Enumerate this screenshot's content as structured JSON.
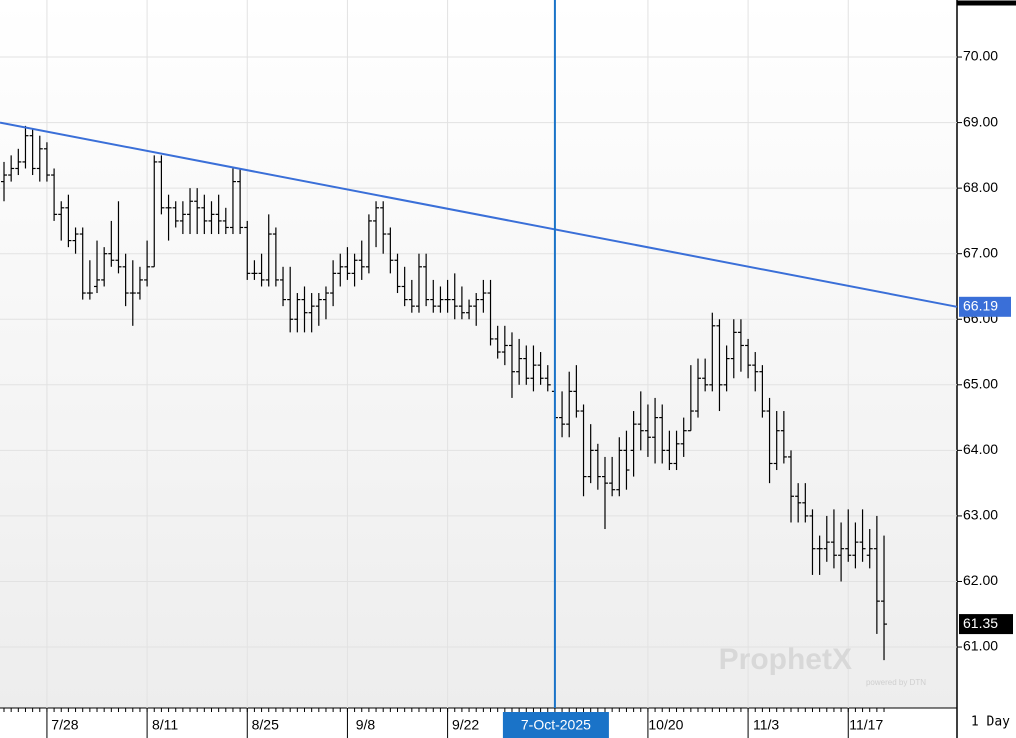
{
  "chart_data": {
    "type": "ohlc",
    "categories": [
      null,
      null,
      null,
      null,
      null,
      null,
      "7/28",
      null,
      null,
      null,
      null,
      null,
      null,
      null,
      null,
      null,
      null,
      null,
      null,
      null,
      "8/11",
      null,
      null,
      null,
      null,
      null,
      null,
      null,
      null,
      null,
      null,
      null,
      null,
      null,
      "8/25",
      null,
      null,
      null,
      null,
      null,
      null,
      null,
      null,
      null,
      null,
      null,
      null,
      null,
      "9/8",
      null,
      null,
      null,
      null,
      null,
      null,
      null,
      null,
      null,
      null,
      null,
      null,
      null,
      "9/22",
      null,
      null,
      null,
      null,
      null,
      null,
      null,
      null,
      null,
      null,
      null,
      null,
      null,
      null,
      null,
      null,
      null,
      null,
      null,
      null,
      null,
      null,
      null,
      null,
      null,
      null,
      null,
      "10/20",
      null,
      null,
      null,
      null,
      null,
      null,
      null,
      null,
      null,
      null,
      null,
      null,
      null,
      "11/3",
      null,
      null,
      null,
      null,
      null,
      null,
      null,
      null,
      null,
      null,
      null,
      null,
      null,
      "11/17",
      null,
      null,
      null,
      null,
      null
    ],
    "open": [
      68.1,
      68.2,
      68.3,
      68.4,
      68.8,
      68.3,
      68.6,
      68.2,
      67.6,
      67.7,
      67.2,
      67.3,
      66.4,
      66.5,
      66.6,
      67.0,
      66.9,
      66.8,
      66.4,
      66.4,
      66.6,
      66.8,
      68.4,
      67.7,
      67.7,
      67.5,
      67.6,
      67.8,
      67.7,
      67.5,
      67.6,
      67.5,
      67.4,
      68.1,
      67.4,
      66.7,
      66.7,
      66.6,
      67.3,
      66.6,
      66.3,
      66.0,
      66.3,
      66.1,
      66.2,
      66.3,
      66.4,
      66.7,
      66.8,
      66.7,
      66.9,
      66.8,
      67.5,
      67.7,
      67.3,
      66.9,
      66.5,
      66.3,
      66.2,
      66.8,
      66.3,
      66.2,
      66.3,
      66.3,
      66.2,
      66.1,
      66.2,
      66.3,
      66.4,
      65.7,
      65.5,
      65.6,
      65.2,
      65.4,
      65.1,
      65.3,
      65.1,
      64.9,
      64.5,
      64.4,
      64.9,
      64.6,
      63.6,
      64.0,
      63.6,
      63.5,
      63.4,
      64.0,
      64.0,
      64.4,
      64.3,
      64.2,
      64.5,
      64.0,
      63.8,
      64.1,
      64.3,
      64.6,
      65.1,
      65.0,
      65.9,
      65.0,
      65.4,
      65.8,
      65.6,
      65.3,
      65.2,
      64.6,
      63.8,
      64.3,
      63.9,
      63.3,
      63.2,
      63.0,
      62.5,
      62.5,
      62.6,
      62.4,
      62.5,
      62.4,
      62.6,
      62.4,
      62.5,
      61.7
    ],
    "high": [
      68.4,
      68.5,
      68.6,
      68.95,
      68.9,
      68.8,
      68.7,
      68.3,
      67.8,
      67.9,
      67.4,
      67.4,
      66.9,
      67.2,
      67.1,
      67.5,
      67.8,
      67.0,
      66.9,
      66.8,
      67.2,
      68.5,
      68.5,
      67.9,
      67.8,
      67.8,
      68.0,
      68.0,
      67.9,
      67.8,
      67.9,
      67.7,
      68.3,
      68.3,
      67.5,
      66.9,
      67.0,
      67.6,
      67.4,
      66.8,
      66.8,
      66.4,
      66.5,
      66.4,
      66.4,
      66.5,
      66.9,
      67.0,
      67.1,
      67.0,
      67.2,
      67.6,
      67.8,
      67.8,
      67.4,
      67.0,
      66.8,
      66.6,
      67.0,
      67.0,
      66.6,
      66.5,
      66.6,
      66.7,
      66.5,
      66.3,
      66.4,
      66.6,
      66.6,
      65.9,
      65.9,
      65.8,
      65.7,
      65.6,
      65.6,
      65.5,
      65.3,
      65.2,
      64.9,
      65.2,
      65.3,
      64.7,
      64.4,
      64.1,
      63.9,
      63.9,
      64.2,
      64.3,
      64.6,
      64.9,
      64.7,
      64.8,
      64.7,
      64.3,
      64.3,
      64.5,
      65.3,
      65.4,
      65.4,
      66.1,
      66.0,
      65.6,
      66.0,
      66.0,
      65.7,
      65.5,
      65.3,
      64.8,
      64.6,
      64.6,
      64.0,
      63.5,
      63.5,
      63.1,
      62.7,
      63.0,
      63.1,
      62.9,
      63.1,
      62.9,
      63.1,
      62.8,
      63.0,
      62.7
    ],
    "low": [
      67.8,
      68.1,
      68.2,
      68.3,
      68.2,
      68.1,
      68.1,
      67.5,
      67.2,
      67.1,
      67.0,
      66.3,
      66.3,
      66.4,
      66.5,
      66.8,
      66.7,
      66.2,
      65.9,
      66.3,
      66.5,
      66.8,
      67.6,
      67.2,
      67.4,
      67.3,
      67.3,
      67.3,
      67.3,
      67.3,
      67.3,
      67.3,
      67.3,
      67.3,
      66.6,
      66.6,
      66.5,
      66.5,
      66.5,
      66.2,
      65.8,
      65.8,
      65.8,
      65.8,
      65.9,
      66.0,
      66.2,
      66.5,
      66.6,
      66.5,
      66.6,
      66.7,
      67.1,
      67.0,
      66.7,
      66.4,
      66.2,
      66.1,
      66.1,
      66.2,
      66.1,
      66.1,
      66.1,
      66.0,
      66.0,
      66.0,
      65.9,
      66.1,
      65.6,
      65.4,
      65.3,
      64.8,
      65.0,
      65.0,
      64.9,
      65.0,
      64.9,
      64.3,
      64.2,
      64.2,
      64.5,
      63.3,
      63.5,
      63.4,
      62.8,
      63.3,
      63.3,
      63.4,
      63.6,
      64.0,
      63.9,
      63.8,
      63.8,
      63.7,
      63.7,
      63.9,
      64.3,
      64.5,
      64.9,
      64.9,
      64.6,
      64.9,
      65.1,
      65.2,
      65.1,
      64.9,
      64.5,
      63.5,
      63.7,
      63.8,
      62.9,
      62.9,
      62.9,
      62.1,
      62.1,
      62.3,
      62.2,
      62.0,
      62.3,
      62.2,
      62.3,
      62.2,
      61.2,
      60.8
    ],
    "close": [
      68.2,
      68.3,
      68.4,
      68.8,
      68.3,
      68.6,
      68.2,
      67.6,
      67.7,
      67.2,
      67.3,
      66.4,
      66.4,
      66.6,
      67.0,
      66.9,
      66.8,
      66.4,
      66.4,
      66.6,
      66.8,
      68.4,
      67.7,
      67.7,
      67.5,
      67.6,
      67.8,
      67.7,
      67.5,
      67.6,
      67.5,
      67.4,
      68.1,
      67.4,
      66.7,
      66.7,
      66.6,
      67.3,
      66.6,
      66.3,
      66.0,
      66.3,
      66.1,
      66.2,
      66.3,
      66.4,
      66.7,
      66.8,
      66.7,
      66.9,
      66.8,
      67.5,
      67.7,
      67.3,
      66.9,
      66.5,
      66.3,
      66.2,
      66.8,
      66.3,
      66.2,
      66.3,
      66.3,
      66.2,
      66.1,
      66.2,
      66.3,
      66.4,
      65.7,
      65.5,
      65.6,
      65.2,
      65.4,
      65.1,
      65.3,
      65.1,
      65.0,
      64.5,
      64.4,
      64.9,
      64.6,
      63.6,
      64.0,
      63.6,
      63.5,
      63.4,
      64.0,
      63.7,
      64.4,
      64.3,
      64.2,
      64.5,
      64.0,
      63.8,
      64.1,
      64.3,
      64.6,
      65.1,
      65.0,
      65.9,
      65.0,
      65.4,
      65.8,
      65.6,
      65.3,
      65.2,
      64.6,
      63.8,
      64.3,
      63.9,
      63.3,
      63.2,
      63.0,
      62.5,
      62.5,
      62.6,
      62.4,
      62.5,
      62.4,
      62.6,
      62.5,
      62.5,
      61.7,
      61.35
    ],
    "color": "#000000",
    "xlim": [
      -0.56,
      133.2
    ],
    "ylim": [
      60.07,
      70.87
    ],
    "yticks": [
      {
        "value": 61,
        "label": "61.00"
      },
      {
        "value": 62,
        "label": "62.00"
      },
      {
        "value": 63,
        "label": "63.00"
      },
      {
        "value": 64,
        "label": "64.00"
      },
      {
        "value": 65,
        "label": "65.00"
      },
      {
        "value": 66,
        "label": "66.00"
      },
      {
        "value": 67,
        "label": "67.00"
      },
      {
        "value": 68,
        "label": "68.00"
      },
      {
        "value": 69,
        "label": "69.00"
      },
      {
        "value": 70,
        "label": "70.00"
      }
    ],
    "grid": true,
    "trendline": {
      "x": [
        -0.56,
        133.2
      ],
      "y": [
        69.0,
        66.19
      ],
      "color": "#3a6fd8"
    },
    "crosshair": {
      "x": 77,
      "label": "7-Oct-2025",
      "color": "#1a73c8"
    },
    "interval": "1 Day",
    "watermark": "ProphetX",
    "watermark_sub": "powered by DTN"
  }
}
